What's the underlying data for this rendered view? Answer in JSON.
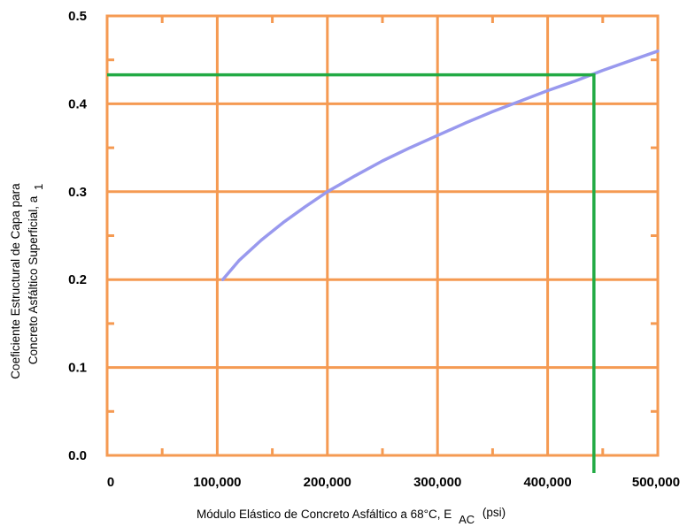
{
  "chart_data": {
    "type": "line",
    "xlabel": "Módulo Elástico de Concreto Asfáltico a 68°C, E",
    "xlabel_subscript": "AC",
    "xlabel_unit": "(psi)",
    "ylabel_line1": "Coeficiente Estructural de Capa para",
    "ylabel_line2": "Concreto Asfáltico Superficial, a",
    "ylabel_subscript": "1",
    "xlim": [
      0,
      500000
    ],
    "ylim": [
      0,
      0.5
    ],
    "x_ticks": [
      0,
      100000,
      200000,
      300000,
      400000,
      500000
    ],
    "x_tick_labels": [
      "0",
      "100,000",
      "200,000",
      "300,000",
      "400,000",
      "500,000"
    ],
    "y_ticks": [
      0,
      0.1,
      0.2,
      0.3,
      0.4,
      0.5
    ],
    "y_tick_labels": [
      "0.0",
      "0.1",
      "0.2",
      "0.3",
      "0.4",
      "0.5"
    ],
    "grid": true,
    "series": [
      {
        "color": "#9999ee",
        "x": [
          105000,
          120000,
          140000,
          160000,
          180000,
          200000,
          225000,
          250000,
          275000,
          300000,
          325000,
          350000,
          375000,
          400000,
          425000,
          450000,
          475000,
          500000
        ],
        "y": [
          0.2,
          0.222,
          0.245,
          0.265,
          0.283,
          0.3,
          0.318,
          0.335,
          0.35,
          0.364,
          0.378,
          0.391,
          0.403,
          0.415,
          0.426,
          0.438,
          0.449,
          0.46
        ]
      }
    ],
    "reference_lines": [
      {
        "type": "vertical",
        "x": 442000,
        "color": "#22aa44"
      },
      {
        "type": "horizontal",
        "y": 0.433,
        "color": "#22aa44"
      }
    ],
    "colors": {
      "grid": "#f59a52",
      "curve": "#9999ee",
      "reference": "#22aa44"
    }
  }
}
